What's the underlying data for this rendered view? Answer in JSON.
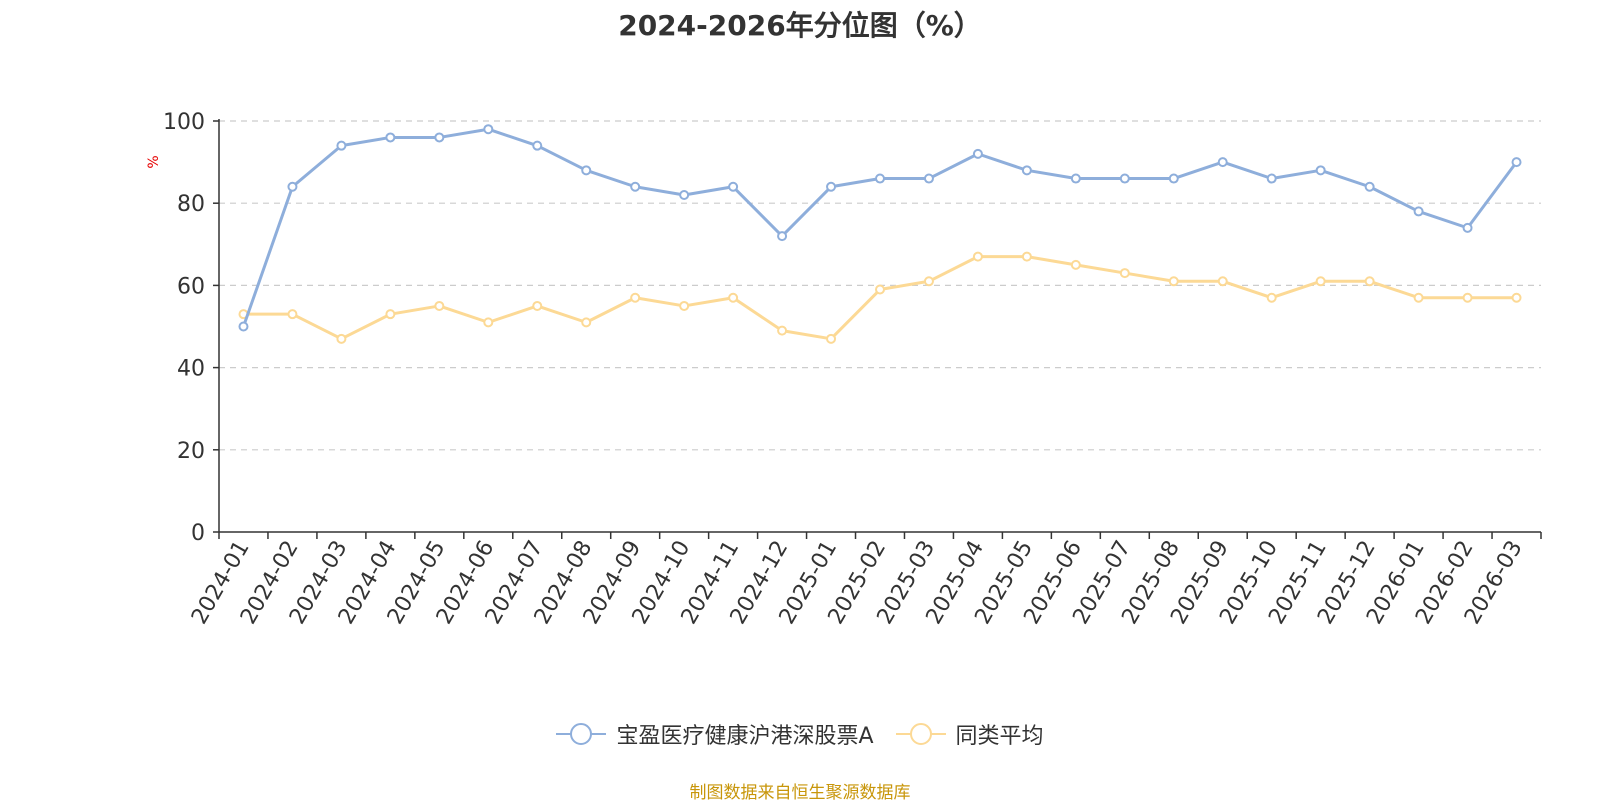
{
  "chart_data": {
    "type": "line",
    "title": "2024-2026年分位图（%）",
    "ylabel": "%",
    "xlabel": "",
    "ylim": [
      0,
      100
    ],
    "yticks": [
      0,
      20,
      40,
      60,
      80,
      100
    ],
    "grid": true,
    "legend_position": "bottom",
    "categories": [
      "2024-01",
      "2024-02",
      "2024-03",
      "2024-04",
      "2024-05",
      "2024-06",
      "2024-07",
      "2024-08",
      "2024-09",
      "2024-10",
      "2024-11",
      "2024-12",
      "2025-01",
      "2025-02",
      "2025-03",
      "2025-04",
      "2025-05",
      "2025-06",
      "2025-07",
      "2025-08",
      "2025-09",
      "2025-10",
      "2025-11",
      "2025-12",
      "2026-01",
      "2026-02",
      "2026-03"
    ],
    "series": [
      {
        "name": "宝盈医疗健康沪港深股票A",
        "color": "#8eaedb",
        "values": [
          50,
          84,
          94,
          96,
          96,
          98,
          94,
          88,
          84,
          82,
          84,
          72,
          84,
          86,
          86,
          92,
          88,
          86,
          86,
          86,
          90,
          86,
          88,
          84,
          78,
          74,
          90
        ]
      },
      {
        "name": "同类平均",
        "color": "#fcd995",
        "values": [
          53,
          53,
          47,
          53,
          55,
          51,
          55,
          51,
          57,
          55,
          57,
          49,
          47,
          59,
          61,
          67,
          67,
          65,
          63,
          61,
          61,
          57,
          61,
          61,
          57,
          57,
          57
        ]
      }
    ]
  },
  "source_note": "制图数据来自恒生聚源数据库",
  "colors": {
    "axis": "#333333",
    "grid": "#cccccc",
    "ylabel": "#e60000",
    "source": "#c8960a"
  }
}
